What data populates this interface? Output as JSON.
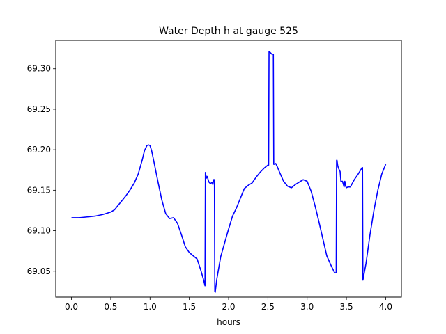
{
  "chart_data": {
    "type": "line",
    "title": "Water Depth h at gauge 525",
    "xlabel": "hours",
    "ylabel": "",
    "xlim": [
      -0.2,
      4.2
    ],
    "ylim": [
      69.018,
      69.335
    ],
    "xticks": [
      0.0,
      0.5,
      1.0,
      1.5,
      2.0,
      2.5,
      3.0,
      3.5,
      4.0
    ],
    "xtick_labels": [
      "0.0",
      "0.5",
      "1.0",
      "1.5",
      "2.0",
      "2.5",
      "3.0",
      "3.5",
      "4.0"
    ],
    "yticks": [
      69.05,
      69.1,
      69.15,
      69.2,
      69.25,
      69.3
    ],
    "ytick_labels": [
      "69.05",
      "69.10",
      "69.15",
      "69.20",
      "69.25",
      "69.30"
    ],
    "grid": false,
    "series": [
      {
        "color": "#0000ff",
        "x": [
          0.0,
          0.1,
          0.2,
          0.3,
          0.4,
          0.5,
          0.55,
          0.6,
          0.65,
          0.7,
          0.75,
          0.8,
          0.85,
          0.9,
          0.93,
          0.96,
          0.98,
          1.0,
          1.02,
          1.05,
          1.1,
          1.15,
          1.2,
          1.25,
          1.3,
          1.35,
          1.4,
          1.45,
          1.5,
          1.55,
          1.6,
          1.65,
          1.68,
          1.7,
          1.705,
          1.71,
          1.72,
          1.73,
          1.74,
          1.75,
          1.77,
          1.79,
          1.8,
          1.81,
          1.82,
          1.825,
          1.83,
          1.85,
          1.9,
          1.95,
          2.0,
          2.05,
          2.1,
          2.15,
          2.2,
          2.25,
          2.3,
          2.35,
          2.4,
          2.45,
          2.5,
          2.51,
          2.515,
          2.52,
          2.55,
          2.56,
          2.57,
          2.575,
          2.58,
          2.6,
          2.62,
          2.65,
          2.7,
          2.75,
          2.8,
          2.85,
          2.9,
          2.95,
          3.0,
          3.05,
          3.1,
          3.15,
          3.2,
          3.25,
          3.3,
          3.35,
          3.37,
          3.375,
          3.38,
          3.39,
          3.4,
          3.42,
          3.43,
          3.45,
          3.47,
          3.48,
          3.49,
          3.5,
          3.52,
          3.55,
          3.6,
          3.65,
          3.7,
          3.705,
          3.71,
          3.75,
          3.8,
          3.85,
          3.9,
          3.95,
          4.0
        ],
        "y": [
          69.116,
          69.116,
          69.117,
          69.118,
          69.12,
          69.123,
          69.126,
          69.132,
          69.138,
          69.144,
          69.151,
          69.159,
          69.17,
          69.187,
          69.199,
          69.205,
          69.206,
          69.205,
          69.199,
          69.185,
          69.161,
          69.138,
          69.121,
          69.115,
          69.116,
          69.109,
          69.095,
          69.08,
          69.073,
          69.069,
          69.065,
          69.05,
          69.04,
          69.032,
          69.172,
          69.169,
          69.165,
          69.167,
          69.163,
          69.16,
          69.158,
          69.16,
          69.157,
          69.163,
          69.163,
          69.025,
          69.024,
          69.04,
          69.068,
          69.085,
          69.102,
          69.118,
          69.128,
          69.14,
          69.152,
          69.156,
          69.159,
          69.166,
          69.172,
          69.177,
          69.181,
          69.181,
          69.321,
          69.321,
          69.318,
          69.318,
          69.318,
          69.182,
          69.182,
          69.183,
          69.179,
          69.172,
          69.161,
          69.155,
          69.153,
          69.157,
          69.16,
          69.163,
          69.161,
          69.149,
          69.131,
          69.111,
          69.09,
          69.069,
          69.058,
          69.048,
          69.048,
          69.187,
          69.187,
          69.18,
          69.177,
          69.173,
          69.161,
          69.161,
          69.154,
          69.161,
          69.155,
          69.153,
          69.154,
          69.154,
          69.163,
          69.17,
          69.178,
          69.178,
          69.039,
          69.06,
          69.095,
          69.125,
          69.15,
          69.17,
          69.182
        ]
      }
    ]
  }
}
